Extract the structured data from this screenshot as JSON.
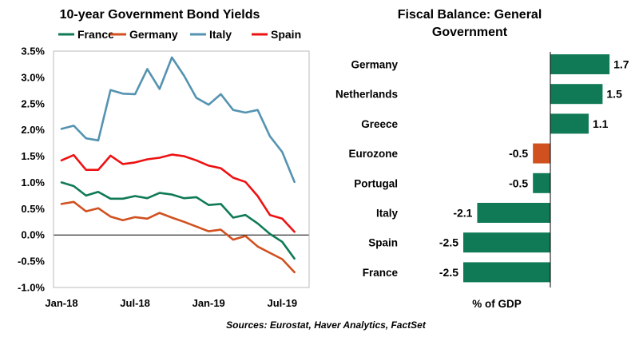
{
  "source_note": "Sources: Eurostat, Haver Analytics, FactSet",
  "chart_data": [
    {
      "type": "line",
      "title": "10-year Government Bond Yields",
      "x_ticks": [
        "Jan-18",
        "Jul-18",
        "Jan-19",
        "Jul-19"
      ],
      "y_ticks": [
        "3.5%",
        "3.0%",
        "2.5%",
        "2.0%",
        "1.5%",
        "1.0%",
        "0.5%",
        "0.0%",
        "-0.5%",
        "-1.0%"
      ],
      "ylim": [
        -1.0,
        3.5
      ],
      "x": [
        "2018-01",
        "2018-02",
        "2018-03",
        "2018-04",
        "2018-05",
        "2018-06",
        "2018-07",
        "2018-08",
        "2018-09",
        "2018-10",
        "2018-11",
        "2018-12",
        "2019-01",
        "2019-02",
        "2019-03",
        "2019-04",
        "2019-05",
        "2019-06",
        "2019-07",
        "2019-08"
      ],
      "legend_placement": "top",
      "grid": false,
      "series": [
        {
          "name": "France",
          "color": "#0f7a55",
          "values": [
            1.0,
            0.93,
            0.75,
            0.82,
            0.69,
            0.69,
            0.74,
            0.7,
            0.8,
            0.77,
            0.7,
            0.72,
            0.57,
            0.59,
            0.33,
            0.38,
            0.22,
            0.02,
            -0.13,
            -0.45
          ]
        },
        {
          "name": "Germany",
          "color": "#d1501f",
          "values": [
            0.59,
            0.63,
            0.45,
            0.51,
            0.35,
            0.28,
            0.34,
            0.31,
            0.42,
            0.33,
            0.25,
            0.16,
            0.07,
            0.1,
            -0.09,
            -0.02,
            -0.22,
            -0.34,
            -0.46,
            -0.71
          ]
        },
        {
          "name": "Italy",
          "color": "#5493b1",
          "values": [
            2.02,
            2.08,
            1.84,
            1.8,
            2.76,
            2.69,
            2.68,
            3.16,
            2.78,
            3.38,
            3.03,
            2.61,
            2.48,
            2.68,
            2.38,
            2.33,
            2.38,
            1.88,
            1.58,
            1.01
          ]
        },
        {
          "name": "Spain",
          "color": "#ee1111",
          "values": [
            1.42,
            1.52,
            1.24,
            1.24,
            1.51,
            1.35,
            1.38,
            1.44,
            1.47,
            1.53,
            1.5,
            1.42,
            1.32,
            1.27,
            1.09,
            1.01,
            0.74,
            0.38,
            0.31,
            0.06
          ]
        }
      ]
    },
    {
      "type": "bar",
      "orientation": "horizontal",
      "title_lines": [
        "Fiscal Balance: General",
        "Government"
      ],
      "xlabel": "% of GDP",
      "categories": [
        "Germany",
        "Netherlands",
        "Greece",
        "Eurozone",
        "Portugal",
        "Italy",
        "Spain",
        "France"
      ],
      "values": [
        1.7,
        1.5,
        1.1,
        -0.5,
        -0.5,
        -2.1,
        -2.5,
        -2.5
      ],
      "labels": [
        "1.7",
        "1.5",
        "1.1",
        "-0.5",
        "-0.5",
        "-2.1",
        "-2.5",
        "-2.5"
      ],
      "colors": [
        "#0f7a55",
        "#0f7a55",
        "#0f7a55",
        "#d1501f",
        "#0f7a55",
        "#0f7a55",
        "#0f7a55",
        "#0f7a55"
      ]
    }
  ]
}
